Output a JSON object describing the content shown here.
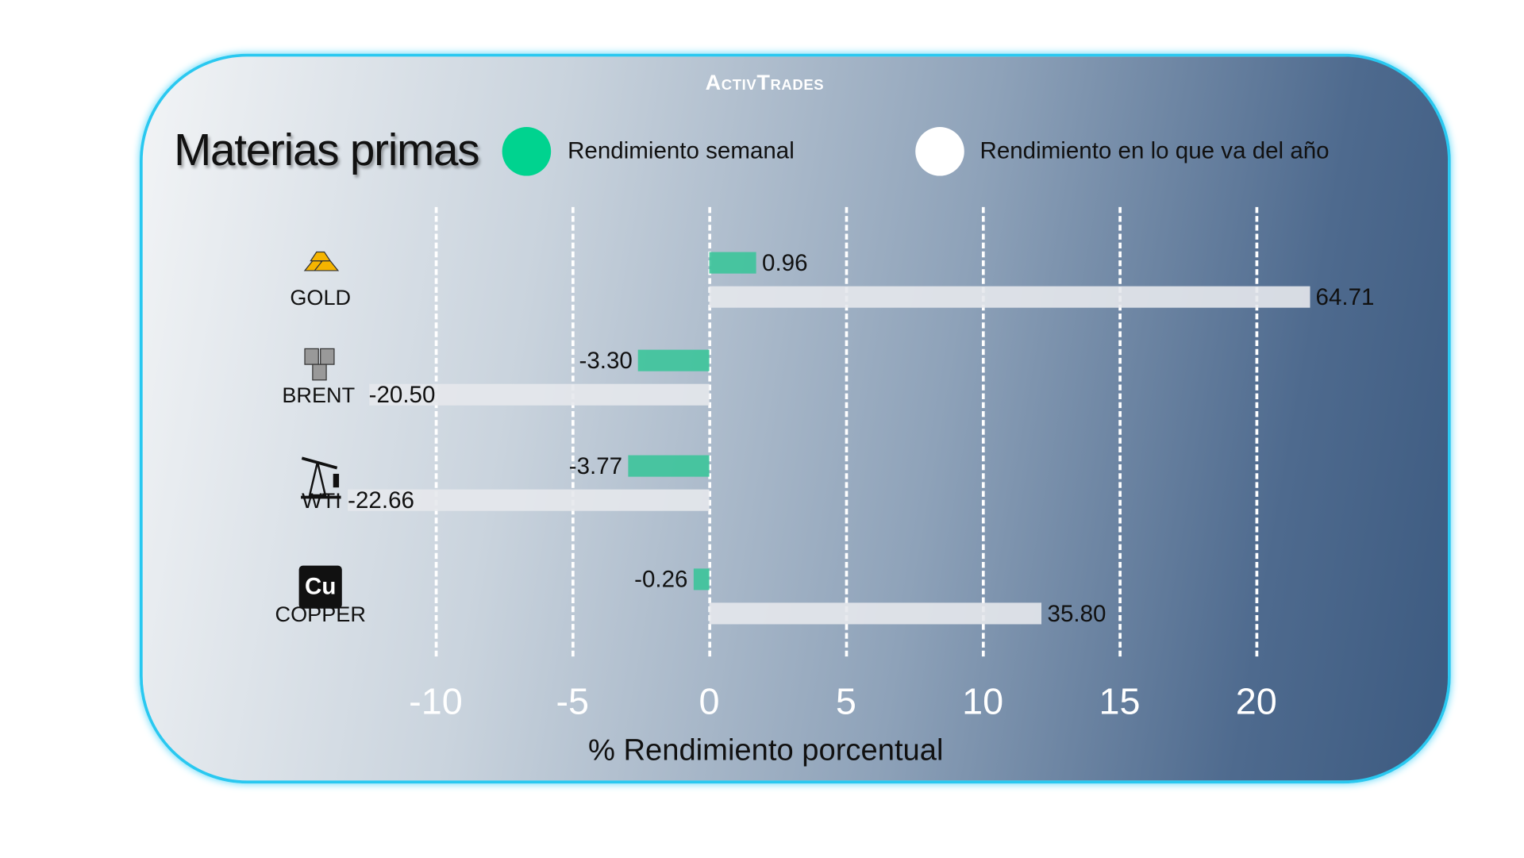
{
  "brand": "ActivTrades",
  "colors": {
    "weekly": "#3cc49a",
    "ytd": "#ffffff",
    "legend_weekly": "#00d38f",
    "border": "#29c8f0"
  },
  "chart_data": {
    "type": "bar",
    "orientation": "horizontal",
    "title": "Materias primas",
    "xlabel": "% Rendimiento porcentual",
    "xticks": [
      "-10",
      "-5",
      "0",
      "5",
      "10",
      "15",
      "20"
    ],
    "xlim": [
      -10,
      20
    ],
    "grid": true,
    "legend_placement": "top",
    "categories": [
      "GOLD",
      "BRENT",
      "WTI",
      "COPPER"
    ],
    "category_icons": [
      "gold-bars-icon",
      "oil-barrels-icon",
      "oil-pump-icon",
      "copper-element-icon"
    ],
    "series": [
      {
        "name": "Rendimiento semanal",
        "values": [
          0.96,
          -3.3,
          -3.77,
          -0.26
        ],
        "labels": [
          "0.96",
          "-3.30",
          "-3.77",
          "-0.26"
        ]
      },
      {
        "name": "Rendimiento en lo que va del año",
        "values": [
          64.71,
          -20.5,
          -22.66,
          35.8
        ],
        "labels": [
          "64.71",
          "-20.50",
          "-22.66",
          "35.80"
        ]
      }
    ]
  }
}
